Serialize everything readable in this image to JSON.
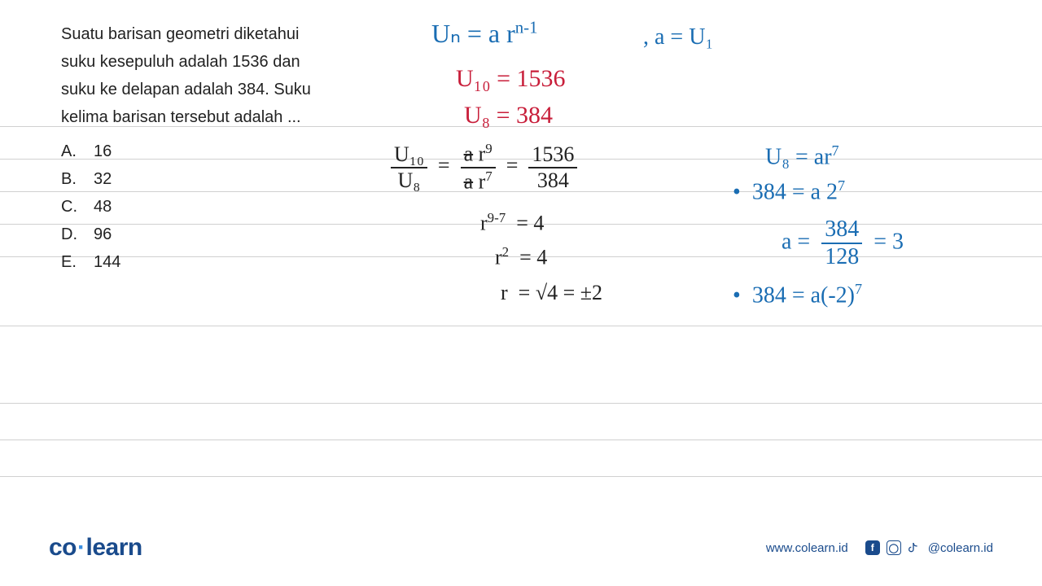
{
  "problem": {
    "text": "Suatu barisan geometri diketahui suku kesepuluh adalah 1536 dan suku ke delapan adalah 384. Suku kelima barisan tersebut adalah ...",
    "options": [
      {
        "letter": "A.",
        "value": "16"
      },
      {
        "letter": "B.",
        "value": "32"
      },
      {
        "letter": "C.",
        "value": "48"
      },
      {
        "letter": "D.",
        "value": "96"
      },
      {
        "letter": "E.",
        "value": "144"
      }
    ]
  },
  "handwriting": {
    "formula_un": {
      "text": "Uₙ = a r",
      "exp": "n-1",
      "color": "#1a6db3"
    },
    "a_eq_u1": {
      "text": ", a = U₁",
      "color": "#1a6db3"
    },
    "u10_val": {
      "label": "U₁₀",
      "eq": "= 1536",
      "color": "#c81e3a"
    },
    "u8_val": {
      "label": "U₈",
      "eq": "= 384",
      "color": "#c81e3a"
    },
    "ratio_left": {
      "num": "U₁₀",
      "den": "U₈"
    },
    "ratio_mid": {
      "num_a": "a",
      "num_r": "r",
      "num_exp": "9",
      "den_a": "a",
      "den_r": "r",
      "den_exp": "7"
    },
    "ratio_right": {
      "num": "1536",
      "den": "384"
    },
    "r_step1": {
      "lhs": "r",
      "exp": "9-7",
      "rhs": "= 4"
    },
    "r_step2": {
      "lhs": "r",
      "exp": "2",
      "rhs": "= 4"
    },
    "r_step3": {
      "lhs": "r",
      "rhs_pre": "= √4 = ±2"
    },
    "u8_formula": {
      "text": "U₈ = ar",
      "exp": "7"
    },
    "solve_a1": {
      "lhs": "384 = a 2",
      "exp": "7"
    },
    "solve_a2": {
      "a_eq": "a =",
      "num": "384",
      "den": "128",
      "res": "= 3"
    },
    "solve_neg": {
      "text": "384 = a(-2)",
      "exp": "7"
    },
    "bullet": "•"
  },
  "ruled_line_positions": [
    155,
    195,
    235,
    275,
    315,
    400,
    495,
    540,
    585
  ],
  "footer": {
    "logo_co": "co",
    "logo_learn": "learn",
    "url": "www.colearn.id",
    "handle": "@colearn.id"
  },
  "colors": {
    "blue_ink": "#1a6db3",
    "red_ink": "#c81e3a",
    "black_ink": "#222222",
    "rule": "#d0d0d0",
    "brand": "#1a4b8c"
  }
}
